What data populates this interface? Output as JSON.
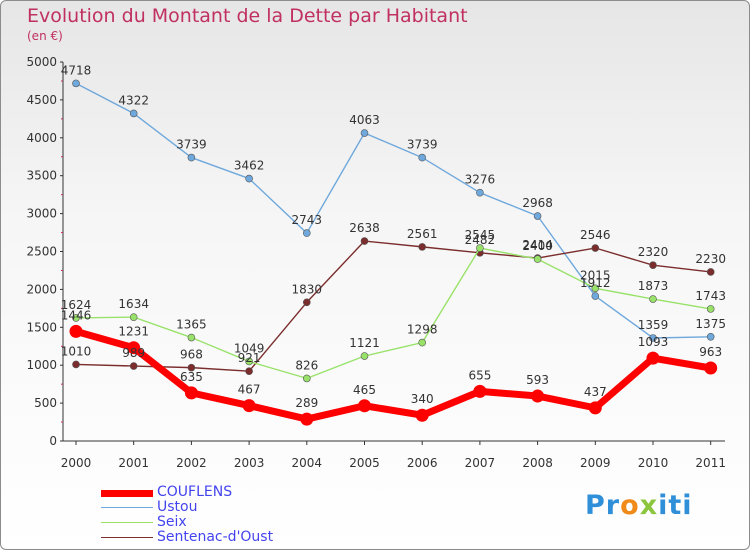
{
  "chart_data": {
    "type": "line",
    "title": "Evolution du Montant de la Dette par Habitant",
    "subtitle": "(en €)",
    "x": [
      "2000",
      "2001",
      "2002",
      "2003",
      "2004",
      "2005",
      "2006",
      "2007",
      "2008",
      "2009",
      "2010",
      "2011"
    ],
    "ylim": [
      0,
      5000
    ],
    "yticks": [
      "0",
      "500",
      "1000",
      "1500",
      "2000",
      "2500",
      "3000",
      "3500",
      "4000",
      "4500",
      "5000"
    ],
    "grid": false,
    "legend": "bottom-left",
    "series": [
      {
        "name": "COUFLENS",
        "color": "#ff0000",
        "values": [
          1446,
          1231,
          635,
          467,
          289,
          465,
          340,
          655,
          593,
          437,
          1093,
          963
        ]
      },
      {
        "name": "Ustou",
        "color": "#6fa8dc",
        "values": [
          4718,
          4322,
          3739,
          3462,
          2743,
          4063,
          3739,
          3276,
          2968,
          1912,
          1359,
          1375
        ]
      },
      {
        "name": "Seix",
        "color": "#99e26a",
        "values": [
          1624,
          1634,
          1365,
          1049,
          826,
          1121,
          1298,
          2545,
          2400,
          2015,
          1873,
          1743
        ]
      },
      {
        "name": "Sentenac-d'Oust",
        "color": "#7b2d2d",
        "values": [
          1010,
          989,
          968,
          921,
          1830,
          2638,
          2561,
          2482,
          2414,
          2546,
          2320,
          2230
        ]
      }
    ]
  },
  "logo": {
    "letters": [
      "P",
      "r",
      "o",
      "x",
      "i",
      "t",
      "i"
    ],
    "colors": [
      "#2f8fd8",
      "#2f8fd8",
      "#f08a18",
      "#8cc63e",
      "#2f8fd8",
      "#2f8fd8",
      "#2f8fd8"
    ]
  }
}
